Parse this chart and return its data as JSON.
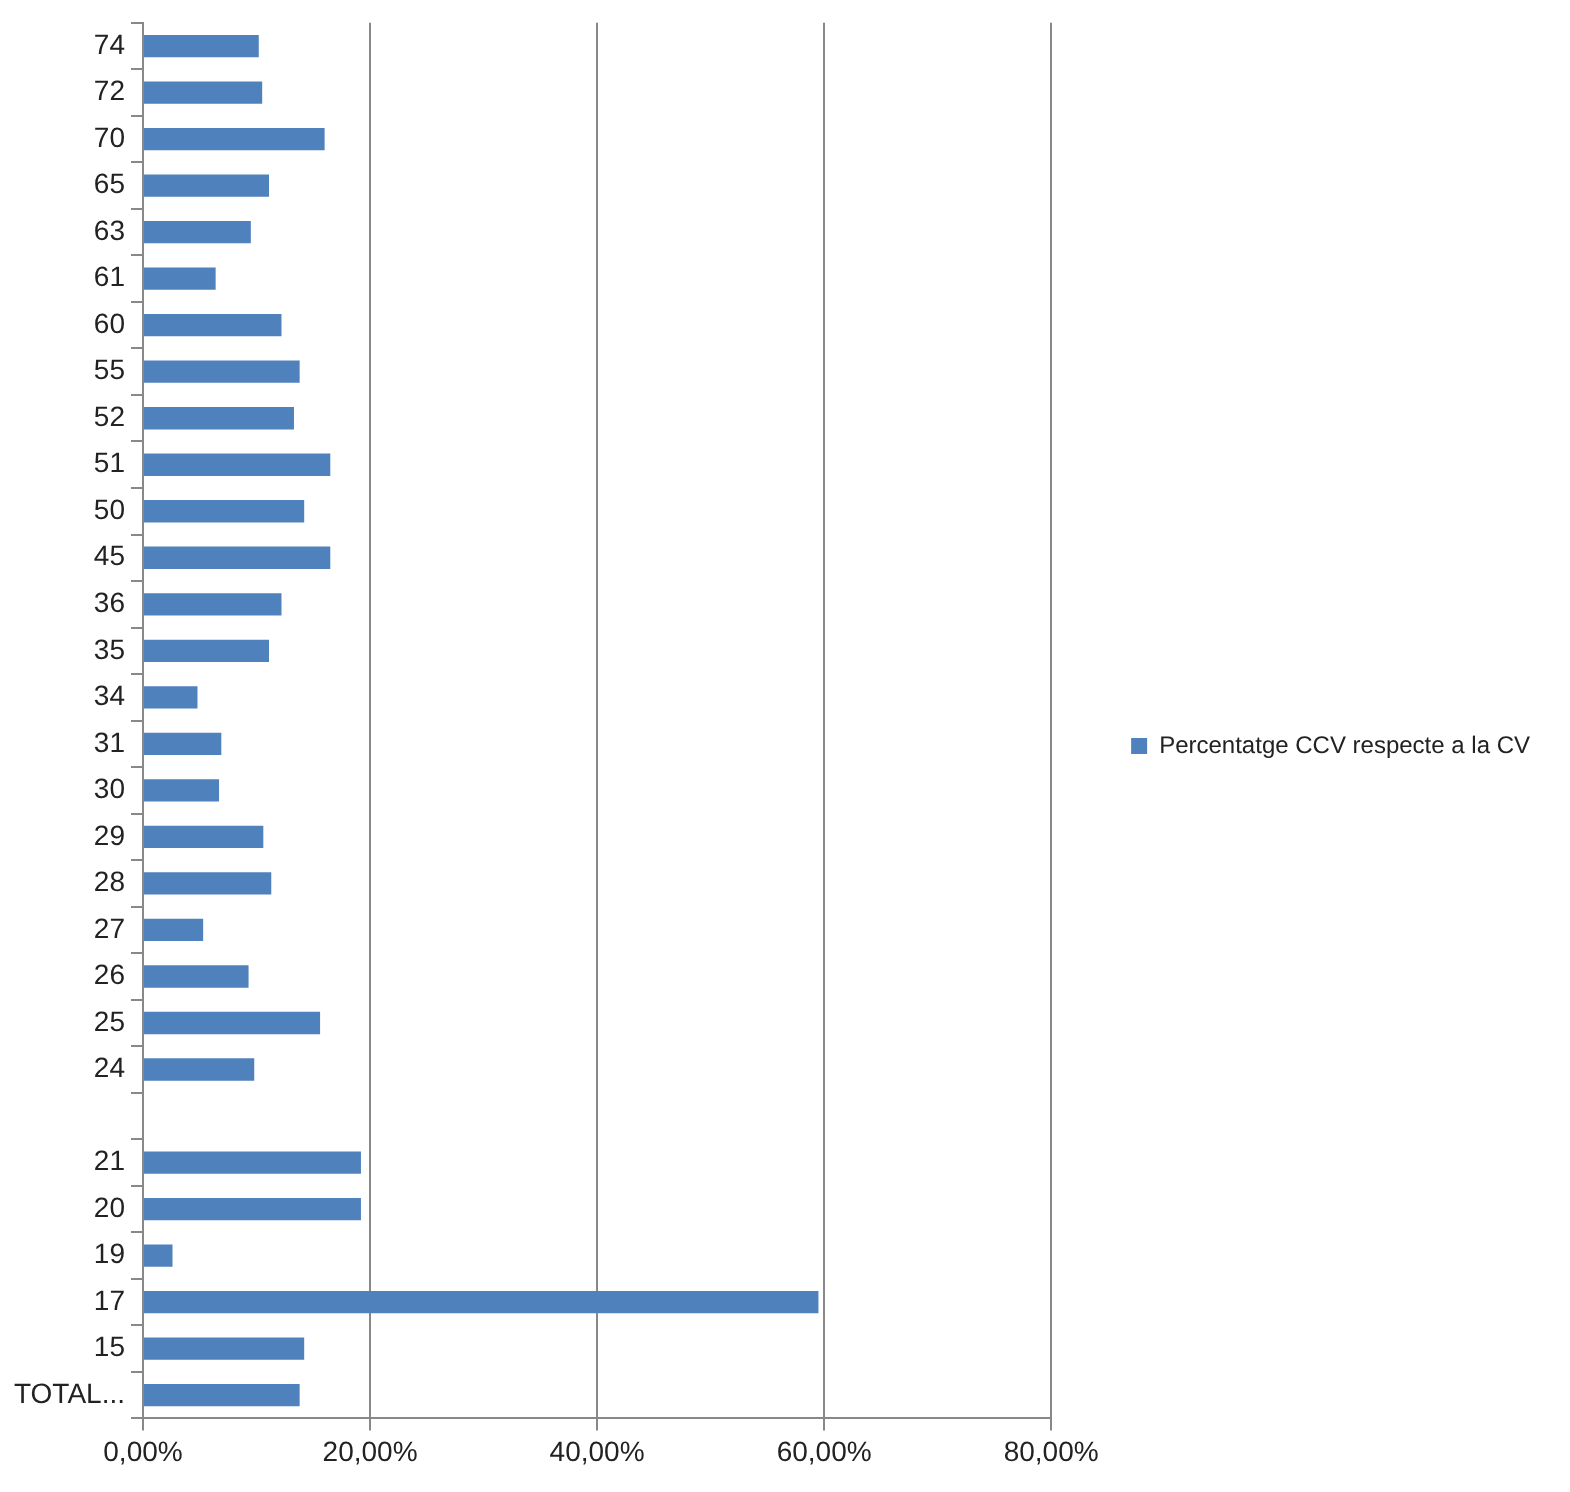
{
  "chart_data": {
    "type": "bar",
    "orientation": "horizontal",
    "categories": [
      "74",
      "72",
      "70",
      "65",
      "63",
      "61",
      "60",
      "55",
      "52",
      "51",
      "50",
      "45",
      "36",
      "35",
      "34",
      "31",
      "30",
      "29",
      "28",
      "27",
      "26",
      "25",
      "24",
      null,
      "21",
      "20",
      "19",
      "17",
      "15",
      "TOTAL..."
    ],
    "series": [
      {
        "name": "Percentatge CCV respecte a la CV",
        "color": "#4f81bd",
        "values": [
          10.2,
          10.5,
          16.0,
          11.1,
          9.5,
          6.4,
          12.2,
          13.8,
          13.3,
          16.5,
          14.2,
          16.5,
          12.2,
          11.1,
          4.8,
          6.9,
          6.7,
          10.6,
          11.3,
          5.3,
          9.3,
          15.6,
          9.8,
          null,
          19.2,
          19.2,
          2.6,
          59.5,
          14.2,
          13.8
        ]
      }
    ],
    "xlim": [
      0,
      80
    ],
    "xticks": [
      {
        "value": 0,
        "label": "0,00%"
      },
      {
        "value": 20,
        "label": "20,00%"
      },
      {
        "value": 40,
        "label": "40,00%"
      },
      {
        "value": 60,
        "label": "60,00%"
      },
      {
        "value": 80,
        "label": "80,00%"
      }
    ],
    "grid": "x",
    "legend": "right"
  }
}
